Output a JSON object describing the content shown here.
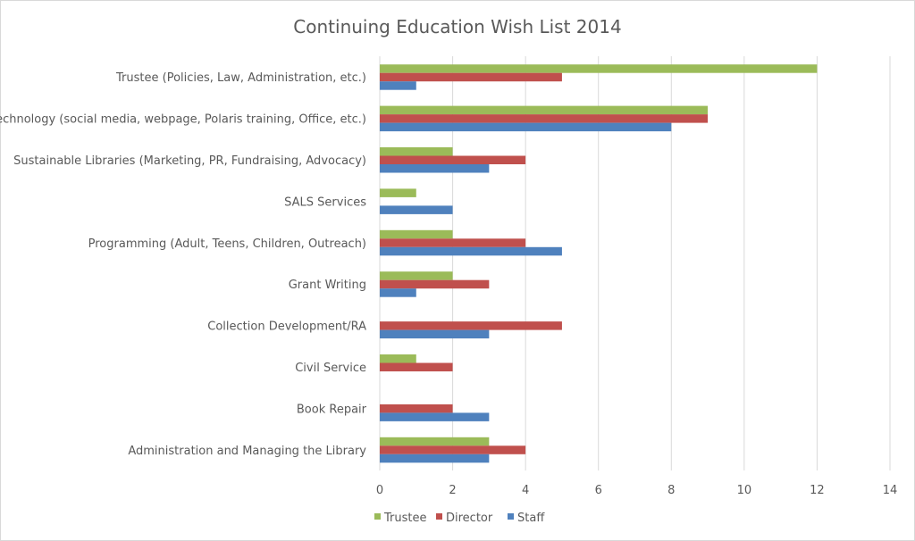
{
  "chart_data": {
    "type": "bar",
    "orientation": "horizontal",
    "title": "Continuing Education Wish List 2014",
    "xlabel": "",
    "ylabel": "",
    "xlim": [
      0,
      14
    ],
    "xticks": [
      0,
      2,
      4,
      6,
      8,
      10,
      12,
      14
    ],
    "grid": true,
    "legend": "bottom",
    "categories": [
      "Trustee (Policies, Law, Administration, etc.)",
      "Technology (social media, webpage, Polaris training, Office, etc.)",
      "Sustainable Libraries (Marketing, PR, Fundraising, Advocacy)",
      "SALS Services",
      "Programming (Adult, Teens, Children, Outreach)",
      "Grant Writing",
      "Collection Development/RA",
      "Civil Service",
      "Book Repair",
      "Administration and Managing the Library"
    ],
    "series": [
      {
        "name": "Trustee",
        "color": "#9BBB59",
        "values": [
          12,
          9,
          2,
          1,
          2,
          2,
          0,
          1,
          0,
          3
        ]
      },
      {
        "name": "Director",
        "color": "#C0504D",
        "values": [
          5,
          9,
          4,
          0,
          4,
          3,
          5,
          2,
          2,
          4
        ]
      },
      {
        "name": "Staff",
        "color": "#4F81BD",
        "values": [
          1,
          8,
          3,
          2,
          5,
          1,
          3,
          0,
          3,
          3
        ]
      }
    ]
  }
}
